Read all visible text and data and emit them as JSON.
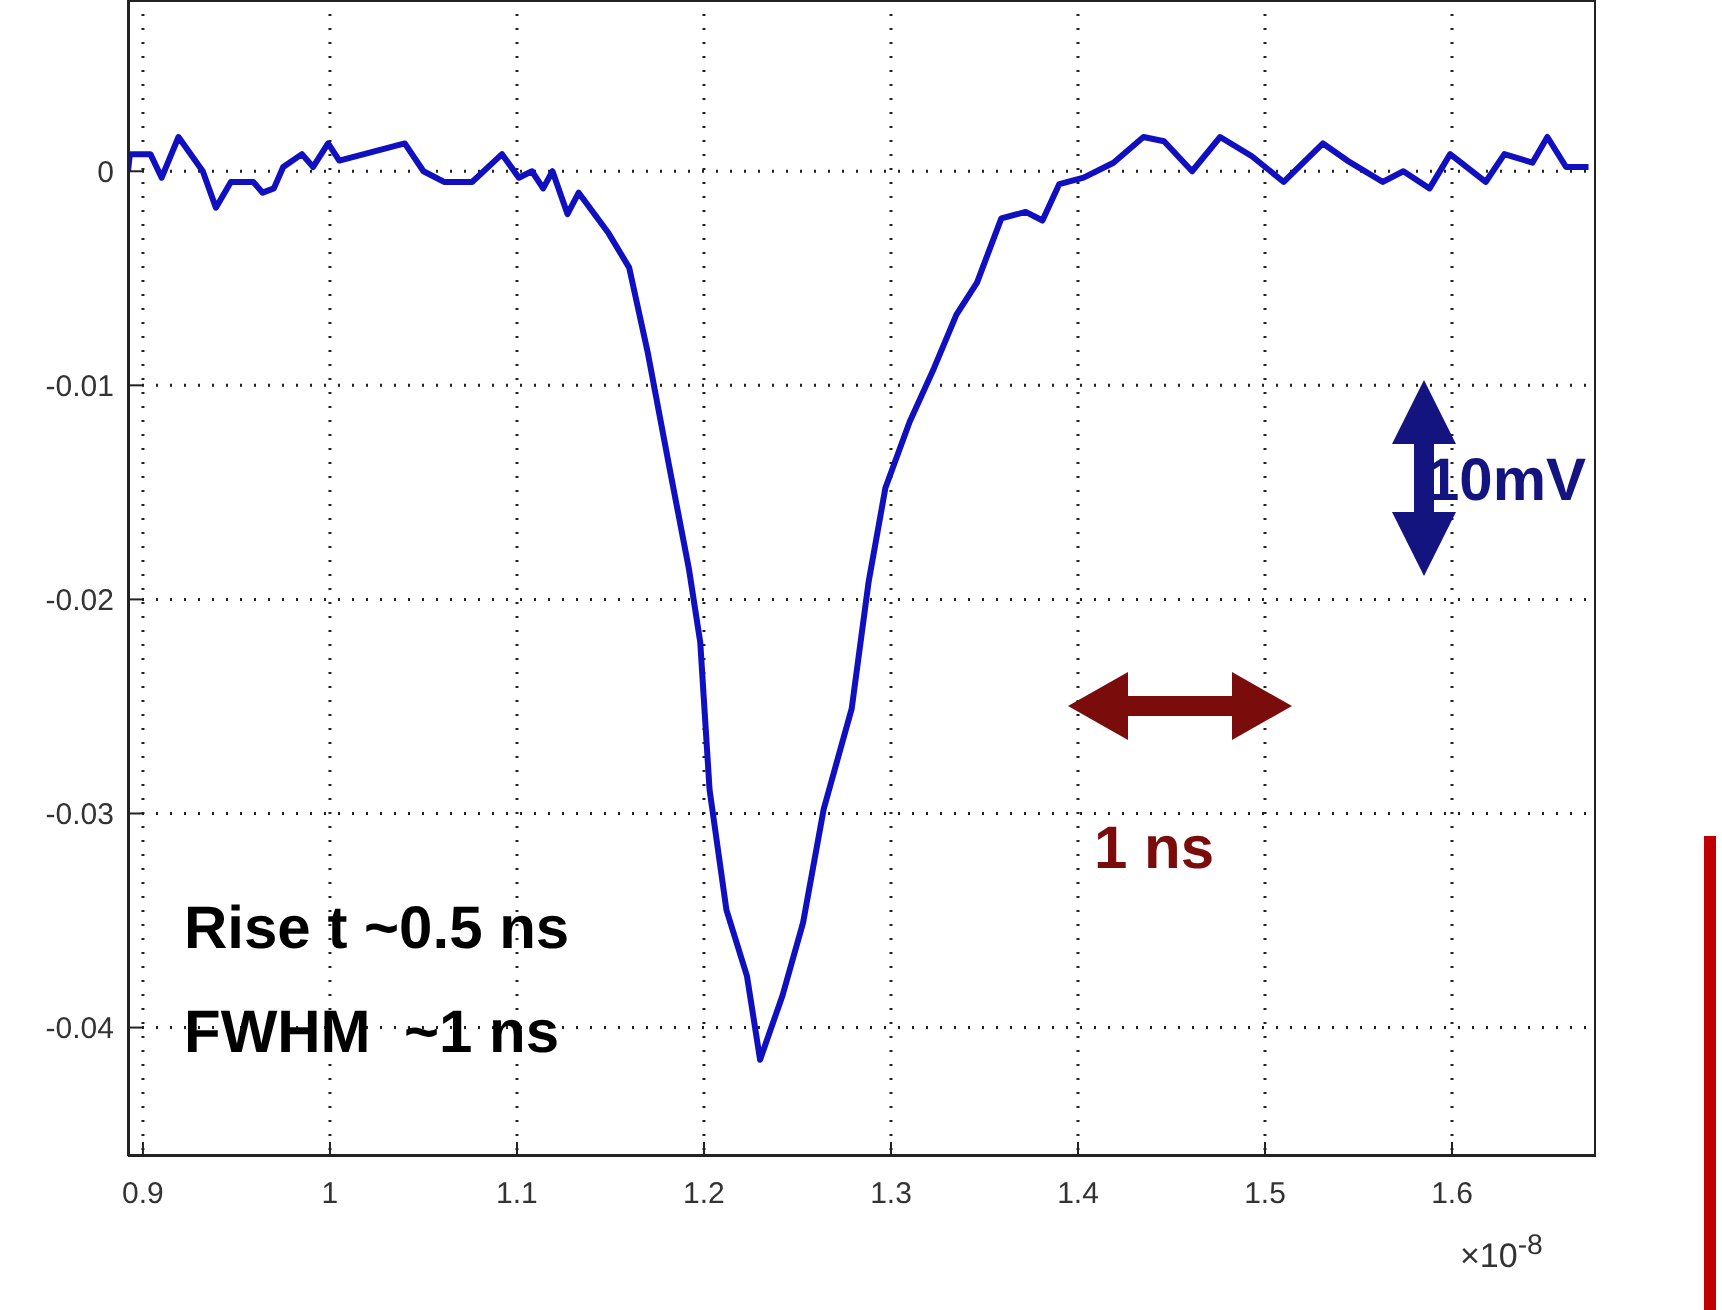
{
  "chart_data": {
    "type": "line",
    "xlabel": "×10$^{-8}$",
    "x": [
      0.892,
      0.893,
      0.904,
      0.91,
      0.919,
      0.932,
      0.939,
      0.947,
      0.959,
      0.964,
      0.97,
      0.975,
      0.985,
      0.991,
      0.999,
      1.005,
      1.04,
      1.05,
      1.061,
      1.076,
      1.092,
      1.101,
      1.108,
      1.114,
      1.119,
      1.127,
      1.133,
      1.149,
      1.16,
      1.17,
      1.181,
      1.192,
      1.198,
      1.203,
      1.212,
      1.223,
      1.23,
      1.242,
      1.253,
      1.264,
      1.279,
      1.288,
      1.297,
      1.31,
      1.323,
      1.335,
      1.346,
      1.359,
      1.372,
      1.381,
      1.39,
      1.403,
      1.419,
      1.435,
      1.446,
      1.461,
      1.476,
      1.493,
      1.51,
      1.531,
      1.544,
      1.563,
      1.574,
      1.588,
      1.599,
      1.618,
      1.628,
      1.643,
      1.651,
      1.661,
      1.673
    ],
    "series": [
      {
        "color": "#1010c0",
        "values": [
          0,
          0.0008,
          0.0008,
          -0.0003,
          0.0016,
          0,
          -0.0017,
          -0.0005,
          -0.0005,
          -0.001,
          -0.0008,
          0.0002,
          0.0008,
          0.0002,
          0.0013,
          0.0005,
          0.0013,
          0,
          -0.0005,
          -0.0005,
          0.0008,
          -0.0003,
          0,
          -0.0008,
          0,
          -0.002,
          -0.001,
          -0.0029,
          -0.0045,
          -0.0085,
          -0.0136,
          -0.0186,
          -0.022,
          -0.0289,
          -0.0345,
          -0.0376,
          -0.0415,
          -0.0385,
          -0.0351,
          -0.0298,
          -0.0251,
          -0.0192,
          -0.0148,
          -0.0117,
          -0.0092,
          -0.0067,
          -0.0052,
          -0.0022,
          -0.0019,
          -0.0023,
          -0.0006,
          -0.0003,
          0.0004,
          0.0016,
          0.0014,
          0,
          0.0016,
          0.0007,
          -0.0005,
          0.0013,
          0.0005,
          -0.0005,
          0,
          -0.0008,
          0.0008,
          -0.0005,
          0.0008,
          0.0004,
          0.0016,
          0.0002,
          0.0002
        ]
      }
    ],
    "xlim": [
      0.892,
      1.677
    ],
    "ylim": [
      -0.046,
      0.008
    ],
    "xticks": [
      0.9,
      1,
      1.1,
      1.2,
      1.3,
      1.4,
      1.5,
      1.6
    ],
    "yticks": [
      -0.04,
      -0.03,
      -0.02,
      -0.01,
      0
    ],
    "grid": true,
    "line_style": "solid",
    "marker": "none",
    "annotations": [
      "Rise t ~0.5 ns",
      "FWHM  ~1 ns",
      "10mV",
      "1 ns"
    ]
  }
}
